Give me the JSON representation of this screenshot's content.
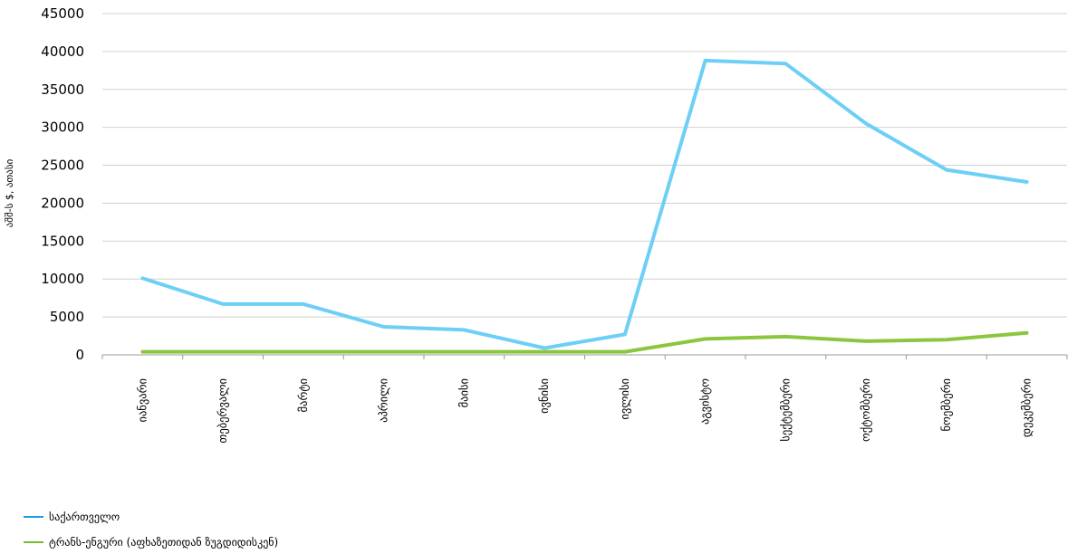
{
  "chart_data": {
    "type": "line",
    "ylabel": "აშშ-ს $, ათასი",
    "ylim": [
      0,
      45000
    ],
    "yticks": [
      0,
      5000,
      10000,
      15000,
      20000,
      25000,
      30000,
      35000,
      40000,
      45000
    ],
    "categories": [
      "იანვარი",
      "თებერვალი",
      "მარტი",
      "აპრილი",
      "მაისი",
      "ივნისი",
      "ივლისი",
      "აგვისტო",
      "სექტემბერი",
      "ოქტომბერი",
      "ნოემბერი",
      "დეკემბერი"
    ],
    "series": [
      {
        "name": "საქართველო",
        "color": "#6ecff6",
        "values": [
          10100,
          6700,
          6700,
          3700,
          3300,
          900,
          2700,
          38800,
          38400,
          30500,
          24400,
          22800
        ]
      },
      {
        "name": "ტრანს-ენგური (აფხაზეთიდან ზუგდიდისკენ)",
        "color": "#8cc63f",
        "values": [
          400,
          400,
          400,
          400,
          400,
          400,
          400,
          2100,
          2400,
          1800,
          2000,
          2900
        ]
      }
    ],
    "grid": true,
    "legend": "bottom-left"
  }
}
